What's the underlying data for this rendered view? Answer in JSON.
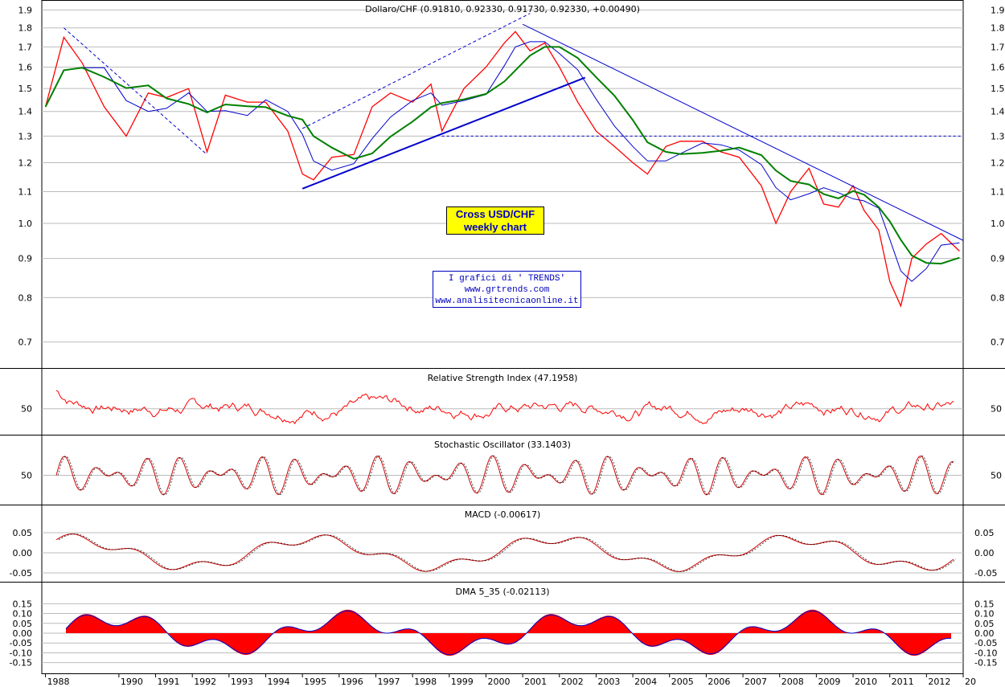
{
  "chart_data": [
    {
      "type": "line",
      "panel": "price",
      "title": "Dollaro/CHF (0.91810, 0.92330, 0.91730, 0.92330, +0.00490)",
      "y_scale": "log",
      "ylim": [
        0.66,
        1.92
      ],
      "y_ticks": [
        "1.9",
        "1.8",
        "1.7",
        "1.6",
        "1.5",
        "1.4",
        "1.3",
        "1.2",
        "1.1",
        "1.0",
        "0.9",
        "0.8",
        "0.7"
      ],
      "x_ticks": [
        "1988",
        "1990",
        "1991",
        "1992",
        "1993",
        "1994",
        "1995",
        "1996",
        "1997",
        "1998",
        "1999",
        "2000",
        "2001",
        "2002",
        "2003",
        "2004",
        "2005",
        "2006",
        "2007",
        "2008",
        "2009",
        "2010",
        "2011",
        "2012",
        "20"
      ],
      "xlim": [
        1987.9,
        2013.0
      ],
      "colors": {
        "price": "#ff0000",
        "ma_fast": "#0000cc",
        "ma_slow": "#008000",
        "trend": "#0000cc"
      },
      "x": [
        1988.0,
        1988.5,
        1989.0,
        1989.6,
        1990.2,
        1990.8,
        1991.3,
        1991.9,
        1992.4,
        1992.9,
        1993.5,
        1994.0,
        1994.6,
        1995.0,
        1995.3,
        1995.8,
        1996.4,
        1996.9,
        1997.4,
        1998.0,
        1998.5,
        1998.8,
        1999.4,
        2000.0,
        2000.5,
        2000.8,
        2001.2,
        2001.6,
        2002.0,
        2002.5,
        2003.0,
        2003.5,
        2004.0,
        2004.4,
        2004.9,
        2005.3,
        2005.9,
        2006.4,
        2006.9,
        2007.5,
        2007.9,
        2008.3,
        2008.8,
        2009.2,
        2009.6,
        2010.0,
        2010.3,
        2010.7,
        2011.0,
        2011.3,
        2011.6,
        2012.0,
        2012.4,
        2012.9
      ],
      "series": [
        {
          "values": [
            1.42,
            1.75,
            1.62,
            1.42,
            1.3,
            1.48,
            1.46,
            1.5,
            1.24,
            1.47,
            1.44,
            1.44,
            1.32,
            1.16,
            1.14,
            1.22,
            1.23,
            1.42,
            1.48,
            1.44,
            1.52,
            1.32,
            1.5,
            1.6,
            1.72,
            1.78,
            1.68,
            1.72,
            1.6,
            1.44,
            1.32,
            1.26,
            1.2,
            1.16,
            1.26,
            1.28,
            1.28,
            1.24,
            1.22,
            1.12,
            1.0,
            1.1,
            1.18,
            1.06,
            1.05,
            1.12,
            1.04,
            0.98,
            0.84,
            0.78,
            0.9,
            0.94,
            0.97,
            0.92
          ]
        }
      ]
    },
    {
      "type": "line",
      "panel": "rsi",
      "title": "Relative Strength Index (47.1958)",
      "y_ticks": [
        "50"
      ],
      "ylim": [
        20,
        85
      ]
    },
    {
      "type": "line",
      "panel": "stochastic",
      "title": "Stochastic Oscillator (33.1403)",
      "y_ticks": [
        "50"
      ],
      "ylim": [
        0,
        100
      ]
    },
    {
      "type": "line",
      "panel": "macd",
      "title": "MACD (-0.00617)",
      "y_ticks": [
        "0.05",
        "0.00",
        "-0.05"
      ],
      "ylim": [
        -0.06,
        0.08
      ]
    },
    {
      "type": "area",
      "panel": "dma",
      "title": "DMA 5_35 (-0.02113)",
      "y_ticks": [
        "0.15",
        "0.10",
        "0.05",
        "0.00",
        "-0.05",
        "-0.10",
        "-0.15"
      ],
      "ylim": [
        -0.18,
        0.18
      ]
    }
  ],
  "annotations": {
    "box_title_line1": "Cross USD/CHF",
    "box_title_line2": "weekly chart",
    "credit_line1": "I grafici di ' TRENDS'",
    "credit_line2": "www.grtrends.com",
    "credit_line3": "www.analisitecnicaonline.it"
  }
}
